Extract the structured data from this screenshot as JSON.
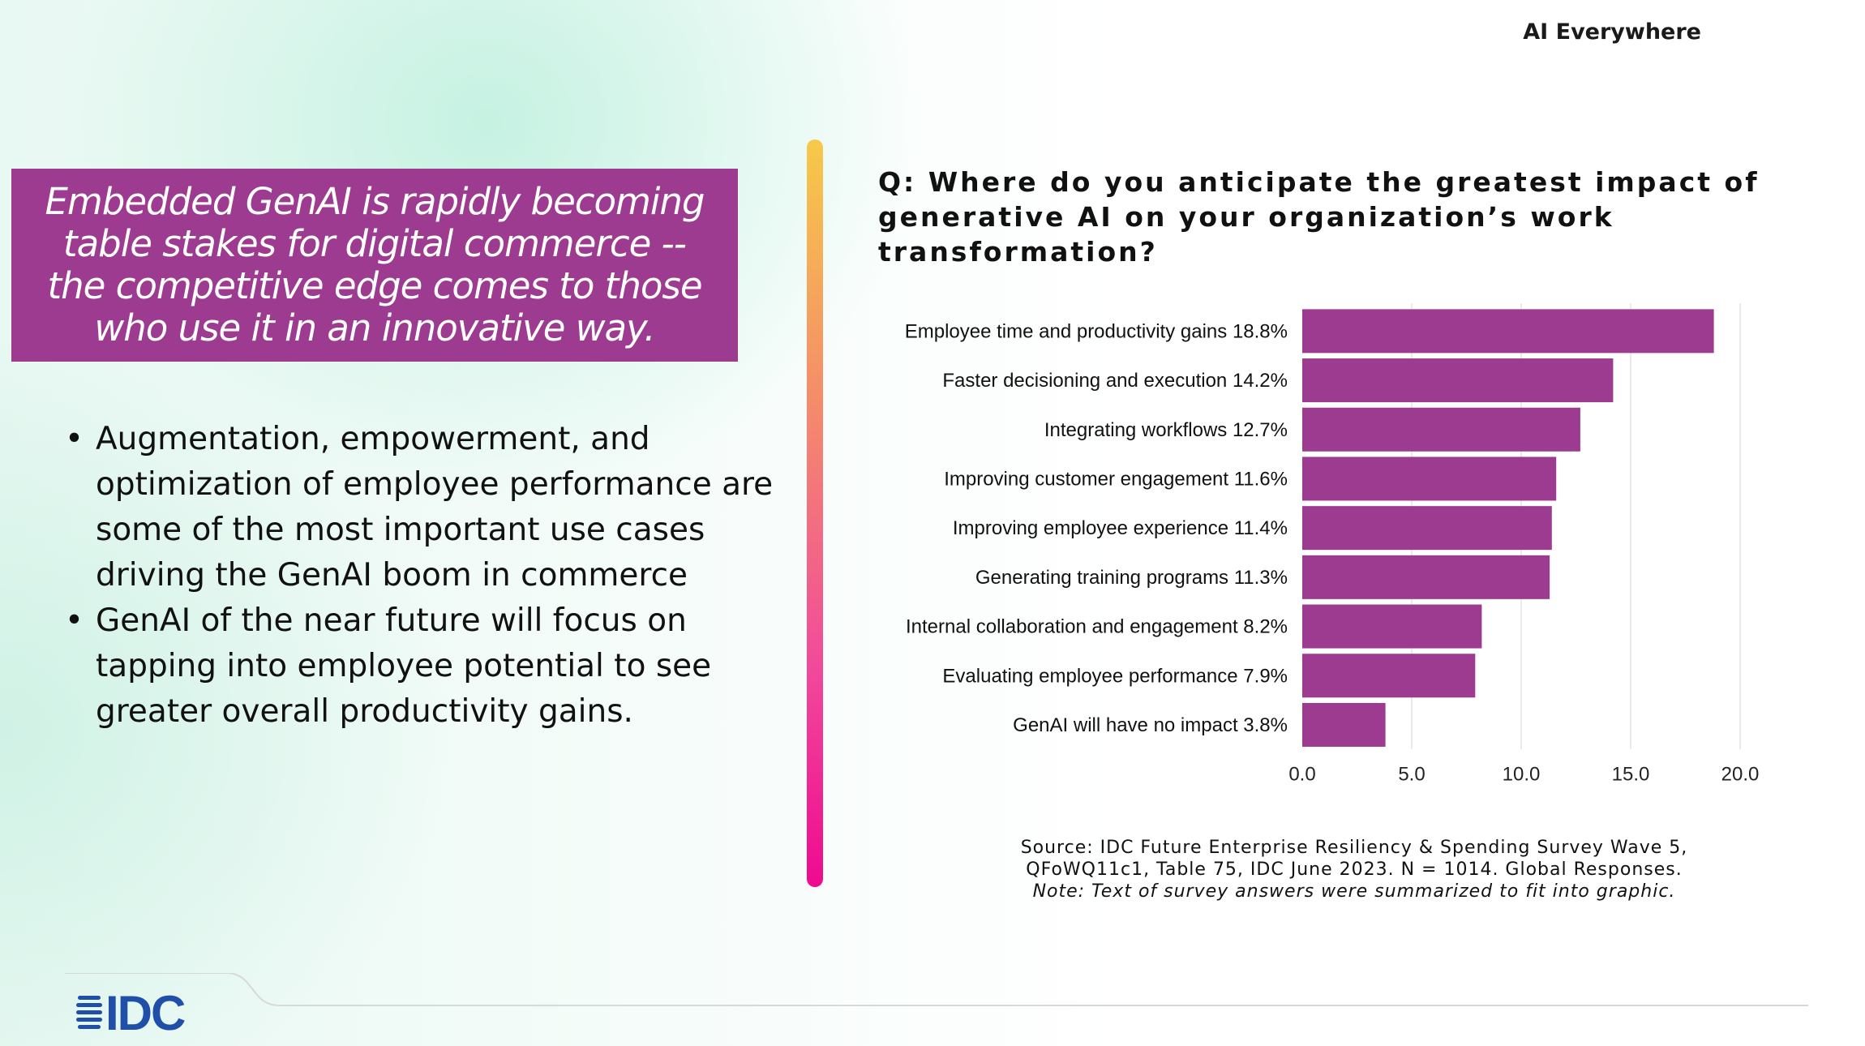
{
  "header": {
    "title": "AI Everywhere"
  },
  "callout": {
    "lines": [
      "Embedded GenAI is rapidly becoming",
      "table stakes for digital commerce --",
      "the competitive edge comes to those",
      "who use it in an innovative way."
    ]
  },
  "bullets": [
    {
      "lines": [
        "Augmentation, empowerment, and",
        "optimization of employee performance are",
        "some of the most important use cases",
        "driving the GenAI boom in commerce"
      ]
    },
    {
      "lines": [
        "GenAI of the near future will focus on",
        "tapping into employee potential to see",
        "greater overall productivity gains."
      ]
    }
  ],
  "question": {
    "lines": [
      "Q: Where do you anticipate the greatest impact of",
      "generative AI on your organization’s work",
      "transformation?"
    ]
  },
  "chart_data": {
    "type": "bar",
    "orientation": "horizontal",
    "categories": [
      "Employee time and productivity gains 18.8%",
      "Faster decisioning and execution 14.2%",
      "Integrating workflows 12.7%",
      "Improving customer engagement 11.6%",
      "Improving employee experience 11.4%",
      "Generating training programs 11.3%",
      "Internal collaboration and engagement 8.2%",
      "Evaluating employee performance 7.9%",
      "GenAI will have no impact 3.8%"
    ],
    "values": [
      18.8,
      14.2,
      12.7,
      11.6,
      11.4,
      11.3,
      8.2,
      7.9,
      3.8
    ],
    "xticks": [
      "0.0",
      "5.0",
      "10.0",
      "15.0",
      "20.0"
    ],
    "xlim": [
      0,
      20
    ],
    "grid": true,
    "bar_color": "#9c3b8f",
    "title": "",
    "xlabel": "",
    "ylabel": ""
  },
  "source": {
    "line1": "Source: IDC Future Enterprise Resiliency & Spending Survey Wave 5,",
    "line2": "QFoWQ11c1, Table 75, IDC June 2023. N = 1014. Global Responses.",
    "note": "Note: Text of survey answers were summarized to fit into graphic."
  },
  "logo": {
    "text": "IDC",
    "color": "#1f4fa8"
  }
}
